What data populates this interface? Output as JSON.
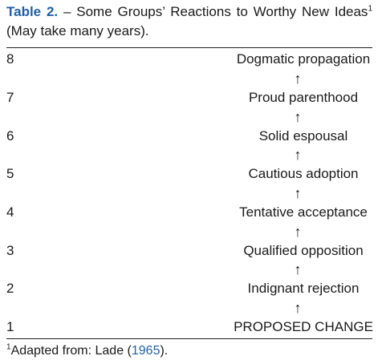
{
  "table": {
    "label": "Table 2.",
    "title_part1": " – Some Groups’ Reactions to Worthy New Ideas",
    "title_sup": "1",
    "title_part2": " (May take many years).",
    "arrow": "↑",
    "rows": [
      {
        "num": "8",
        "stage": "Dogmatic propagation"
      },
      {
        "num": "7",
        "stage": "Proud parenthood"
      },
      {
        "num": "6",
        "stage": "Solid espousal"
      },
      {
        "num": "5",
        "stage": "Cautious adoption"
      },
      {
        "num": "4",
        "stage": "Tentative acceptance"
      },
      {
        "num": "3",
        "stage": "Qualified opposition"
      },
      {
        "num": "2",
        "stage": "Indignant rejection"
      },
      {
        "num": "1",
        "stage": "PROPOSED CHANGE"
      }
    ]
  },
  "footnote": {
    "sup": "1",
    "text": "Adapted from: Lade (",
    "ref": "1965",
    "end": ")."
  }
}
